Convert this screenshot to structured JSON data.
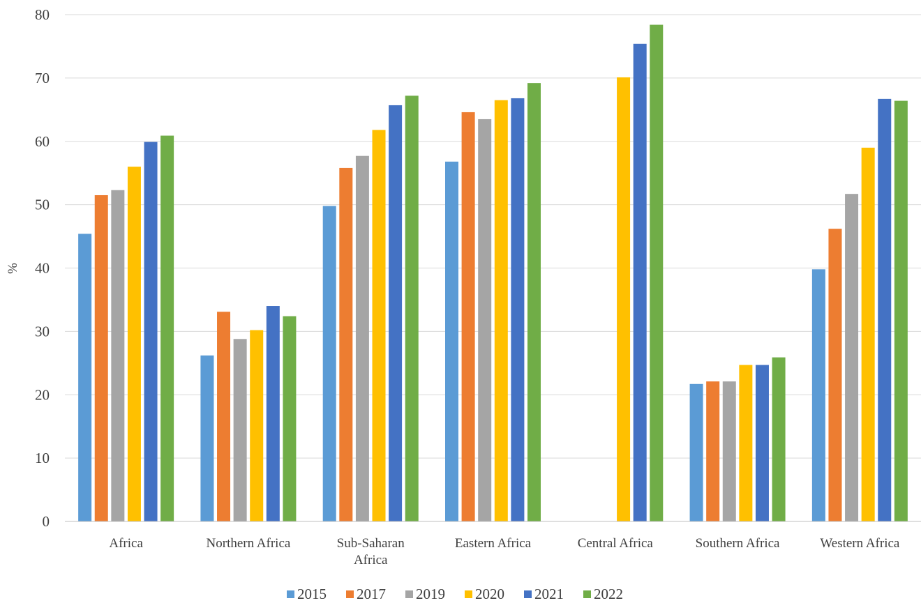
{
  "chart_data": {
    "type": "bar",
    "title": "",
    "xlabel": "",
    "ylabel": "%",
    "ylim": [
      0,
      80
    ],
    "yticks": [
      "0",
      "10",
      "20",
      "30",
      "40",
      "50",
      "60",
      "70",
      "80"
    ],
    "grid": true,
    "legend_position": "bottom",
    "categories": [
      [
        "Africa"
      ],
      [
        "Northern Africa"
      ],
      [
        "Sub-Saharan",
        "Africa"
      ],
      [
        "Eastern Africa"
      ],
      [
        "Central Africa"
      ],
      [
        "Southern Africa"
      ],
      [
        "Western Africa"
      ]
    ],
    "series": [
      {
        "name": "2015",
        "color": "#5b9bd5",
        "values": [
          45.4,
          26.2,
          49.8,
          56.8,
          null,
          21.7,
          39.8
        ]
      },
      {
        "name": "2017",
        "color": "#ed7d31",
        "values": [
          51.5,
          33.1,
          55.8,
          64.6,
          null,
          22.1,
          46.2
        ]
      },
      {
        "name": "2019",
        "color": "#a5a5a5",
        "values": [
          52.3,
          28.8,
          57.7,
          63.5,
          null,
          22.1,
          51.7
        ]
      },
      {
        "name": "2020",
        "color": "#ffc000",
        "values": [
          56.0,
          30.2,
          61.8,
          66.5,
          70.1,
          24.7,
          59.0
        ]
      },
      {
        "name": "2021",
        "color": "#4472c4",
        "values": [
          59.9,
          34.0,
          65.7,
          66.8,
          75.4,
          24.7,
          66.7
        ]
      },
      {
        "name": "2022",
        "color": "#70ad47",
        "values": [
          60.9,
          32.4,
          67.2,
          69.2,
          78.4,
          25.9,
          66.4
        ]
      }
    ]
  }
}
